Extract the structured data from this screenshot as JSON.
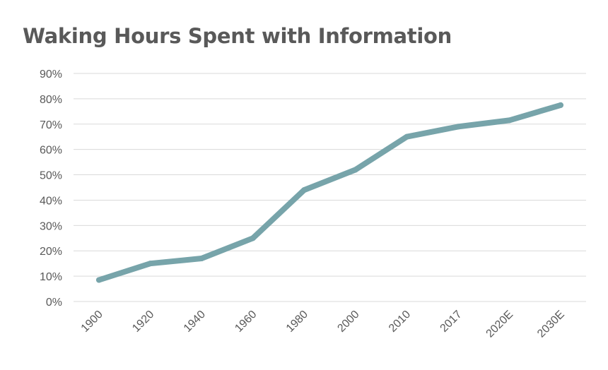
{
  "chart_data": {
    "type": "line",
    "title": "Waking Hours Spent with Information",
    "xlabel": "",
    "ylabel": "",
    "categories": [
      "1900",
      "1920",
      "1940",
      "1960",
      "1980",
      "2000",
      "2010",
      "2017",
      "2020E",
      "2030E"
    ],
    "series": [
      {
        "values": [
          8.5,
          15,
          17,
          25,
          44,
          52,
          65,
          69,
          71.5,
          77.5
        ]
      }
    ],
    "ylim": [
      0,
      90
    ],
    "y_ticks": [
      "0%",
      "10%",
      "20%",
      "30%",
      "40%",
      "50%",
      "60%",
      "70%",
      "80%",
      "90%"
    ],
    "grid": true,
    "legend": "none",
    "colors": {
      "line": "#77a4aa",
      "grid": "#d9d9d9",
      "text": "#595959"
    }
  }
}
